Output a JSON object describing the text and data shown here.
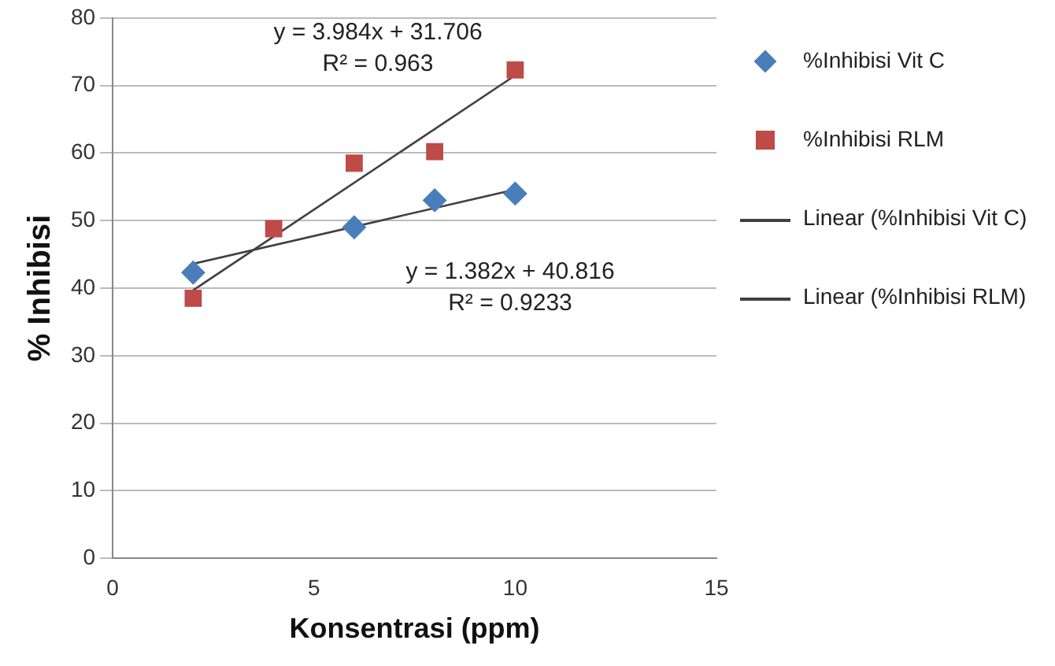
{
  "chart_data": {
    "type": "scatter",
    "xlabel": "Konsentrasi (ppm)",
    "ylabel": "% Inhibisi",
    "xlim": [
      0,
      15
    ],
    "xticks": [
      0,
      5,
      10,
      15
    ],
    "ylim": [
      0,
      80
    ],
    "yticks": [
      0,
      10,
      20,
      30,
      40,
      50,
      60,
      70,
      80
    ],
    "grid": "y",
    "legend": "right",
    "series": [
      {
        "name": "%Inhibisi Vit C",
        "marker": "diamond",
        "color": "#4a7ebb",
        "x": [
          2,
          6,
          8,
          10
        ],
        "values": [
          42.3,
          49,
          53,
          54
        ]
      },
      {
        "name": "%Inhibisi RLM",
        "marker": "square",
        "color": "#be4b48",
        "x": [
          2,
          4,
          6,
          8,
          10
        ],
        "values": [
          38.5,
          48.8,
          58.5,
          60.2,
          72.3
        ]
      },
      {
        "name": "Linear (%Inhibisi Vit C)",
        "type": "line",
        "marker": "none",
        "color": "#404040",
        "x": [
          2,
          10
        ],
        "values": [
          43.6,
          54.6
        ]
      },
      {
        "name": "Linear (%Inhibisi RLM)",
        "type": "line",
        "marker": "none",
        "color": "#404040",
        "x": [
          2,
          10
        ],
        "values": [
          39.7,
          71.5
        ]
      }
    ],
    "annotations": [
      "y = 3.984x + 31.706",
      "R² = 0.963",
      "y = 1.382x + 40.816",
      "R² = 0.9233"
    ]
  }
}
